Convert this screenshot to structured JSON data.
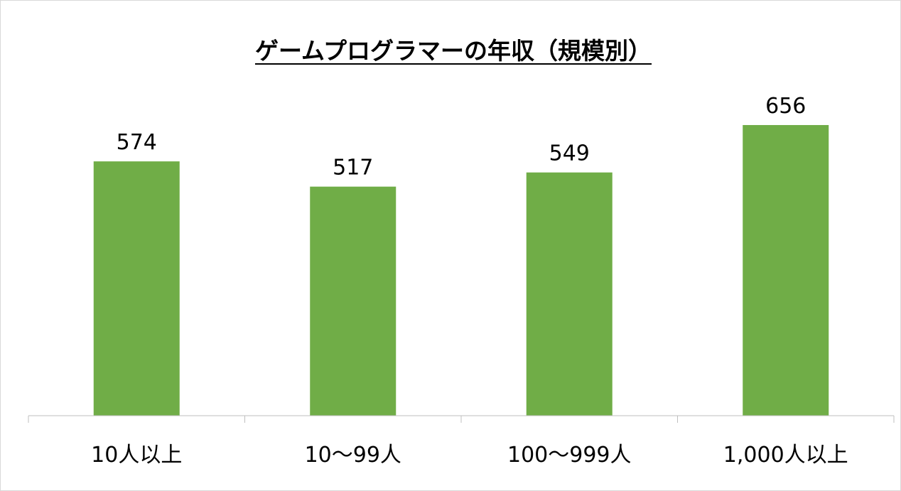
{
  "chart_data": {
    "type": "bar",
    "title": "ゲームプログラマーの年収（規模別）",
    "categories": [
      "10人以上",
      "10〜99人",
      "100〜999人",
      "1,000人以上"
    ],
    "values": [
      574,
      517,
      549,
      656
    ],
    "value_labels": [
      "574",
      "517",
      "549",
      "656"
    ],
    "xlabel": "",
    "ylabel": "",
    "ylim": [
      0,
      730
    ],
    "grid": false,
    "legend": "none",
    "bar_color": "#70ad47"
  }
}
